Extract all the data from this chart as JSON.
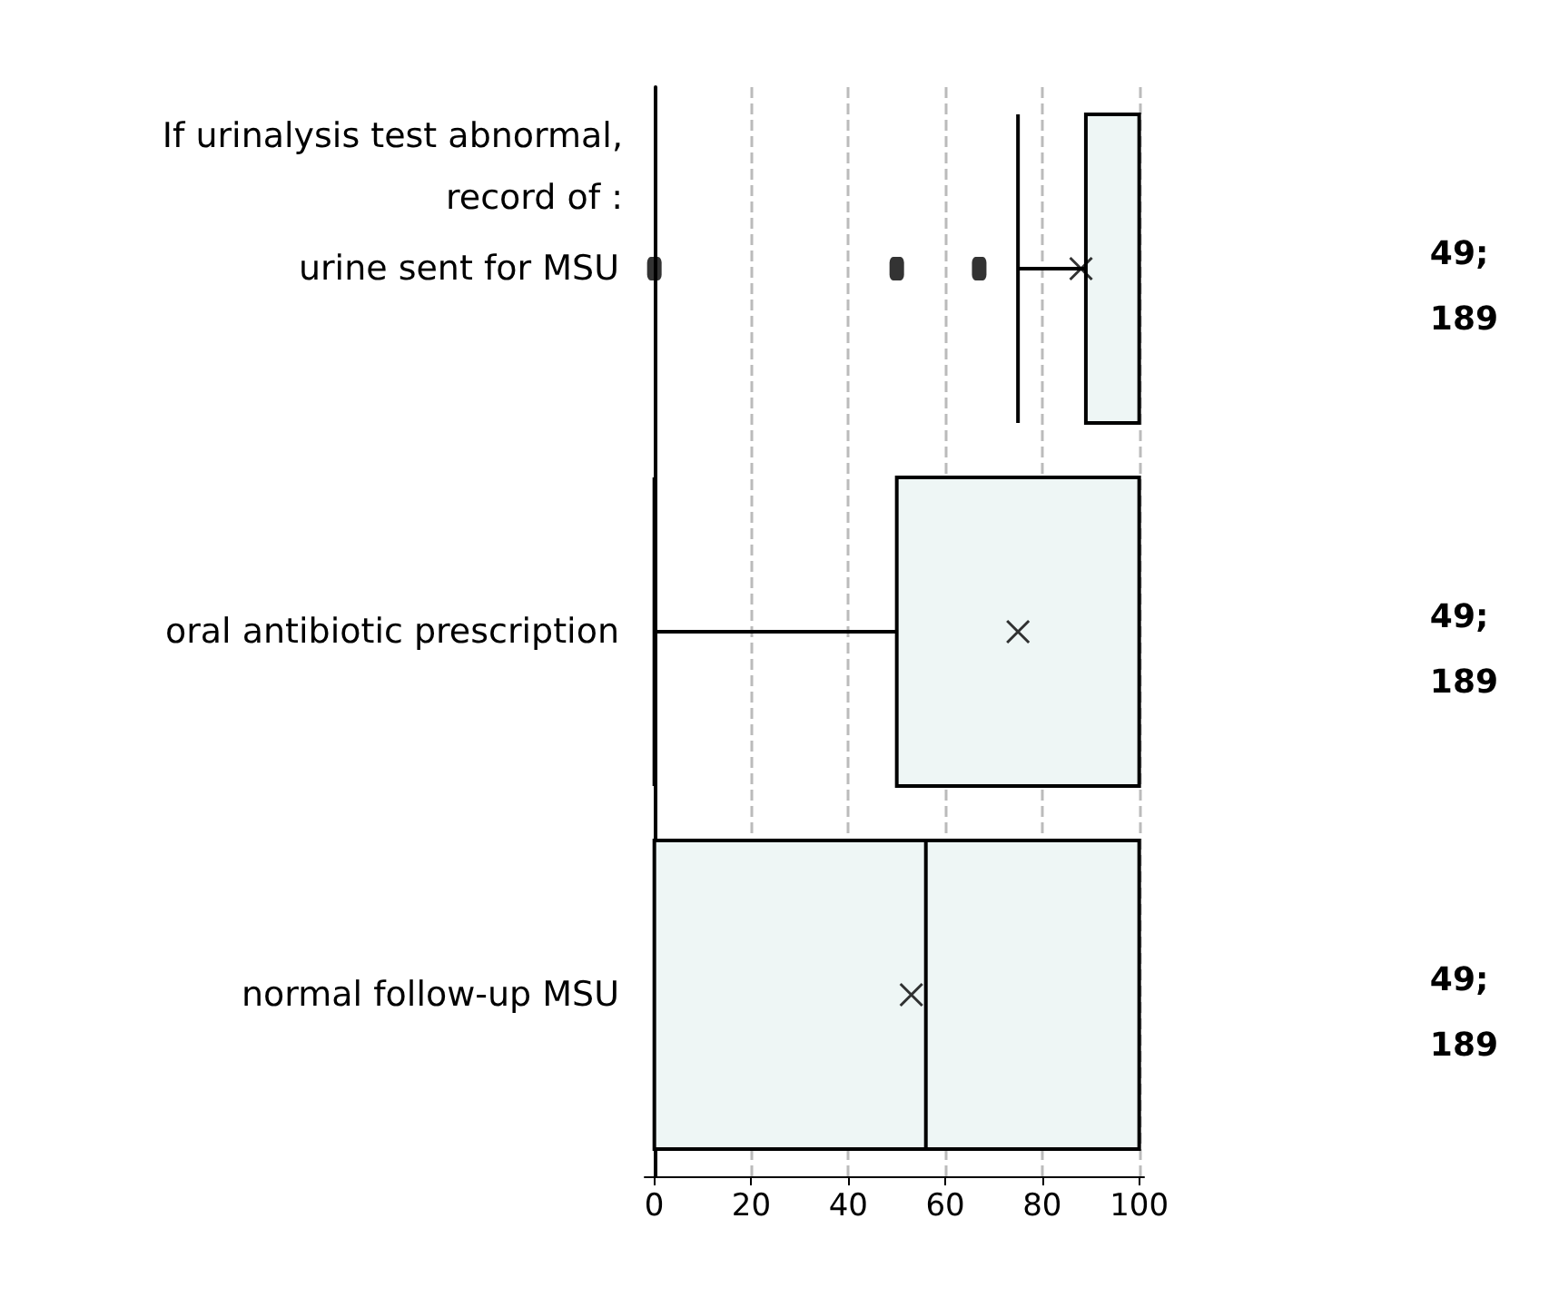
{
  "chart_data": {
    "type": "box",
    "orientation": "horizontal",
    "title": "If urinalysis test abnormal,\nrecord of :",
    "categories": [
      "urine sent for MSU",
      "oral antibiotic prescription",
      "normal follow-up MSU"
    ],
    "boxes": [
      {
        "low": 75,
        "q1": 89,
        "median": 100,
        "q3": 100,
        "high": 100,
        "mean": 88,
        "outliers": [
          0,
          50,
          67
        ]
      },
      {
        "low": 0,
        "q1": 50,
        "median": 100,
        "q3": 100,
        "high": 100,
        "mean": 75
      },
      {
        "low": 0,
        "q1": 0,
        "median": 56,
        "q3": 100,
        "high": 100,
        "mean": 53
      }
    ],
    "color": "#eef6f5",
    "marker": "cross",
    "xlim": [
      -2,
      101
    ],
    "xticks": [
      0,
      20,
      40,
      60,
      80,
      100
    ],
    "grid": "x",
    "annotations": [
      "49;\n189",
      "49;\n189",
      "49;\n189"
    ]
  }
}
